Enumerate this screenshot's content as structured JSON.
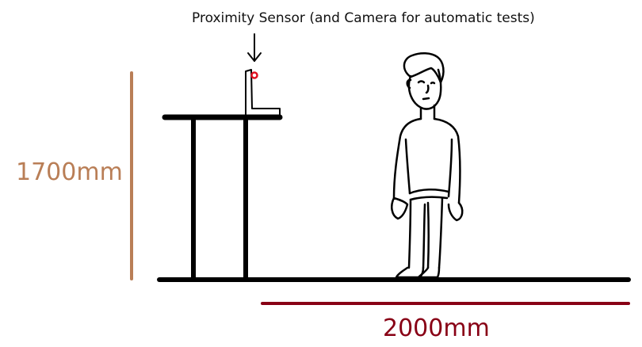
{
  "labels": {
    "sensor_caption": "Proximity Sensor (and Camera for automatic tests)",
    "height_label": "1700mm",
    "distance_label": "2000mm"
  },
  "colors": {
    "height_dimension": "#b97e56",
    "distance_dimension": "#880015",
    "sensor_dot": "#e01020",
    "ink": "#000000"
  },
  "icons": {
    "sensor_pointer": "down-arrow-icon"
  }
}
